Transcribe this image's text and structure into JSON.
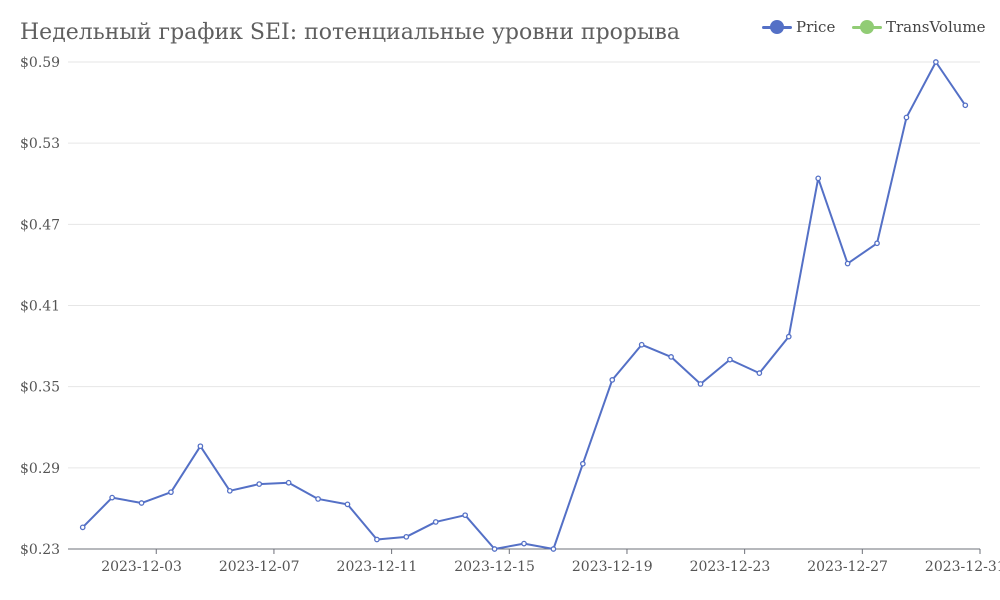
{
  "chart_data": {
    "type": "line",
    "title": "Недельный график SEI: потенциальные уровни прорыва",
    "legend": [
      {
        "name": "Price",
        "color": "#5470c6"
      },
      {
        "name": "TransVolume",
        "color": "#91cc75"
      }
    ],
    "legend_position": "top-right",
    "x": [
      "2023-12-01",
      "2023-12-02",
      "2023-12-03",
      "2023-12-04",
      "2023-12-05",
      "2023-12-06",
      "2023-12-07",
      "2023-12-08",
      "2023-12-09",
      "2023-12-10",
      "2023-12-11",
      "2023-12-12",
      "2023-12-13",
      "2023-12-14",
      "2023-12-15",
      "2023-12-16",
      "2023-12-17",
      "2023-12-18",
      "2023-12-19",
      "2023-12-20",
      "2023-12-21",
      "2023-12-22",
      "2023-12-23",
      "2023-12-24",
      "2023-12-25",
      "2023-12-26",
      "2023-12-27",
      "2023-12-28",
      "2023-12-29",
      "2023-12-30",
      "2023-12-31"
    ],
    "x_tick_labels": [
      "2023-12-03",
      "2023-12-07",
      "2023-12-11",
      "2023-12-15",
      "2023-12-19",
      "2023-12-23",
      "2023-12-27",
      "2023-12-31"
    ],
    "y_ticks": [
      "$0.23",
      "$0.29",
      "$0.35",
      "$0.41",
      "$0.47",
      "$0.53",
      "$0.59"
    ],
    "ylim": [
      0.23,
      0.59
    ],
    "grid": true,
    "series": [
      {
        "name": "Price",
        "color": "#5470c6",
        "values": [
          0.246,
          0.268,
          0.264,
          0.272,
          0.306,
          0.273,
          0.278,
          0.279,
          0.267,
          0.263,
          0.237,
          0.239,
          0.25,
          0.255,
          0.23,
          0.234,
          0.23,
          0.293,
          0.355,
          0.381,
          0.372,
          0.352,
          0.37,
          0.36,
          0.387,
          0.504,
          0.441,
          0.456,
          0.549,
          0.59,
          0.558
        ]
      }
    ]
  }
}
